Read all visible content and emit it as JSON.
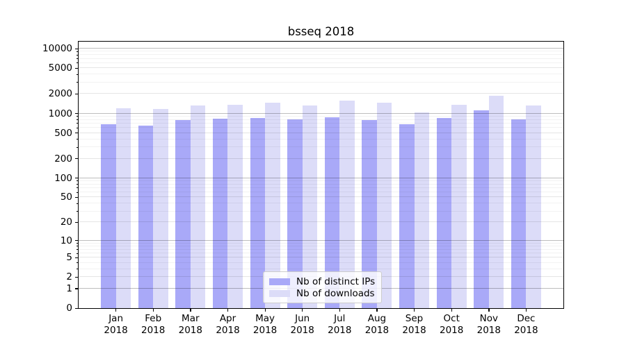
{
  "chart_data": {
    "type": "bar",
    "title": "bsseq 2018",
    "categories": [
      "Jan",
      "Feb",
      "Mar",
      "Apr",
      "May",
      "Jun",
      "Jul",
      "Aug",
      "Sep",
      "Oct",
      "Nov",
      "Dec"
    ],
    "x_year": "2018",
    "series": [
      {
        "name": "Nb of distinct IPs",
        "color": "#a9a9f8",
        "values": [
          690,
          650,
          800,
          840,
          850,
          820,
          870,
          790,
          680,
          850,
          1110,
          820
        ]
      },
      {
        "name": "Nb of downloads",
        "color": "#dcdcf8",
        "values": [
          1200,
          1170,
          1320,
          1370,
          1450,
          1320,
          1580,
          1480,
          1050,
          1350,
          1890,
          1320
        ]
      }
    ],
    "y_ticks": [
      0,
      1,
      2,
      5,
      10,
      20,
      50,
      100,
      200,
      500,
      1000,
      2000,
      5000,
      10000
    ],
    "y_minor_ticks": [
      3,
      4,
      6,
      7,
      8,
      9,
      30,
      40,
      60,
      70,
      80,
      90,
      300,
      400,
      600,
      700,
      800,
      900,
      3000,
      4000,
      6000,
      7000,
      8000,
      9000
    ],
    "y_decade_ticks": [
      1,
      10,
      100,
      1000,
      10000
    ],
    "scale": "pseudo-log log10(1+x)",
    "ylim": [
      0,
      12800
    ],
    "grid": "horizontal major and minor, drawn over bars",
    "legend_position": "inside bottom-center",
    "colors": {
      "axis": "#000000",
      "decade_grid": "rgba(0,0,0,0.26)",
      "major_grid": "rgba(0,0,0,0.10)",
      "minor_grid": "rgba(0,0,0,0.05)",
      "legend_border": "#cccccc"
    }
  }
}
